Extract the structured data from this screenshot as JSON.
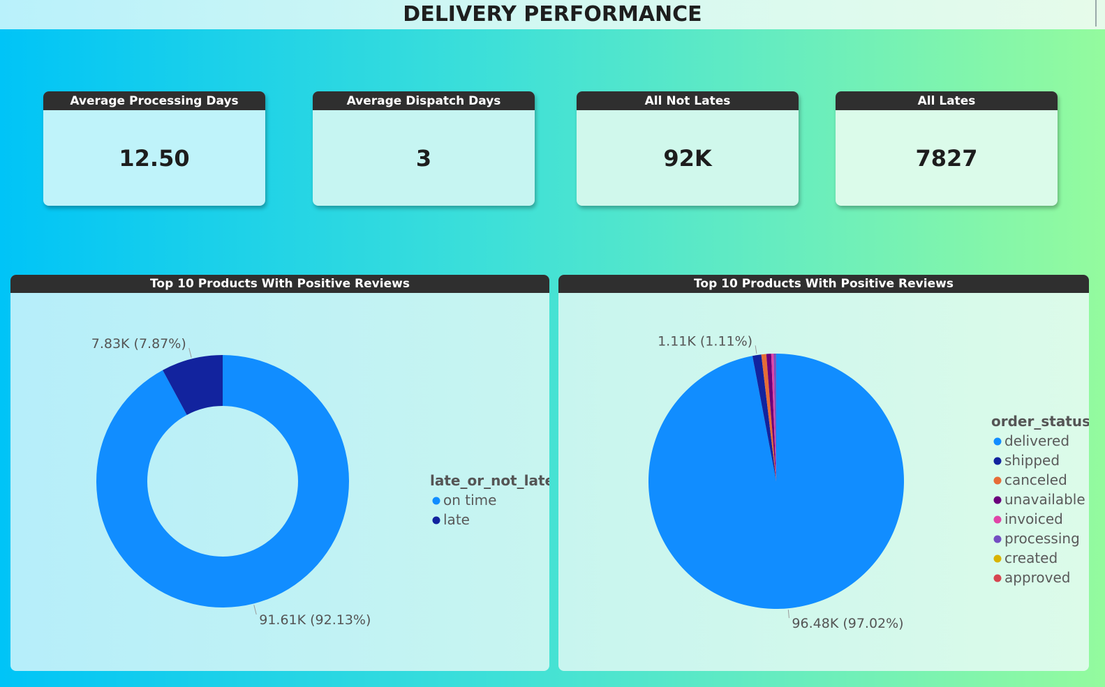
{
  "page": {
    "title": "DELIVERY PERFORMANCE"
  },
  "cards": [
    {
      "label": "Average Processing Days",
      "value": "12.50"
    },
    {
      "label": "Average Dispatch Days",
      "value": "3"
    },
    {
      "label": "All Not Lates",
      "value": "92K"
    },
    {
      "label": "All Lates",
      "value": "7827"
    }
  ],
  "colors": {
    "header_bg": "#2f2f2f",
    "card_bg_left": "#bff3fa",
    "card_bg_right": "#dbfbea"
  },
  "chart_data": [
    {
      "type": "pie",
      "variant": "donut",
      "title": "Top 10 Products With Positive Reviews",
      "legend_title": "late_or_not_late",
      "legend_position": "right",
      "series": [
        {
          "name": "on time",
          "value": 91610,
          "label": "91.61K (92.13%)",
          "color": "#118dff"
        },
        {
          "name": "late",
          "value": 7830,
          "label": "7.83K (7.87%)",
          "color": "#12239e"
        }
      ]
    },
    {
      "type": "pie",
      "title": "Top 10 Products With Positive Reviews",
      "legend_title": "order_status",
      "legend_position": "right",
      "series": [
        {
          "name": "delivered",
          "value": 96480,
          "label": "96.48K (97.02%)",
          "color": "#118dff"
        },
        {
          "name": "shipped",
          "value": 1110,
          "label": "1.11K (1.11%)",
          "color": "#12239e"
        },
        {
          "name": "canceled",
          "value": 625,
          "color": "#e66c37"
        },
        {
          "name": "unavailable",
          "value": 609,
          "color": "#6b007b"
        },
        {
          "name": "invoiced",
          "value": 314,
          "color": "#e044a7"
        },
        {
          "name": "processing",
          "value": 301,
          "color": "#744ec2"
        },
        {
          "name": "created",
          "value": 5,
          "color": "#d9b300"
        },
        {
          "name": "approved",
          "value": 2,
          "color": "#d64550"
        }
      ]
    }
  ]
}
